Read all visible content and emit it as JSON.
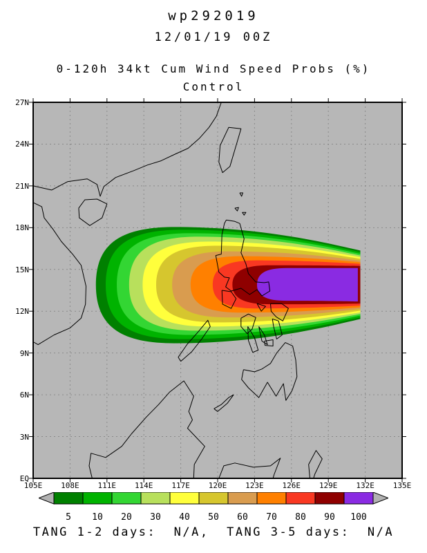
{
  "header": {
    "storm_id": "wp292019",
    "datetime": "12/01/19 00Z",
    "product": "0-120h 34kt Cum Wind Speed Probs (%)",
    "member": "Control"
  },
  "footer": {
    "text": "TANG 1-2 days:  N/A,  TANG 3-5 days:  N/A"
  },
  "chart_data": {
    "type": "filled_contour_map",
    "title": "wp292019 12/01/19 00Z 0-120h 34kt Cum Wind Speed Probs (%) Control",
    "units": "%",
    "map_bg": "#b7b7b7",
    "grid_color": "#8a8a8a",
    "coast_color": "#000000",
    "x_axis": {
      "lon_min": 105,
      "lon_max": 135,
      "step": 3,
      "ticks": [
        "105E",
        "108E",
        "111E",
        "114E",
        "117E",
        "120E",
        "123E",
        "126E",
        "129E",
        "132E",
        "135E"
      ]
    },
    "y_axis": {
      "lat_min": 0,
      "lat_max": 27,
      "step": 3,
      "ticks": [
        "27N",
        "24N",
        "21N",
        "18N",
        "15N",
        "12N",
        "9N",
        "6N",
        "3N",
        "EQ"
      ]
    },
    "colorbar": {
      "levels": [
        "5",
        "10",
        "20",
        "30",
        "40",
        "50",
        "60",
        "70",
        "80",
        "90",
        "100"
      ],
      "colors": [
        "#008000",
        "#00b300",
        "#33d633",
        "#b8e05c",
        "#ffff3c",
        "#d6c62e",
        "#d99c4f",
        "#ff8000",
        "#f93822",
        "#8f0000",
        "#8a2be2"
      ],
      "arrow_color": "#b2b2b2"
    },
    "contours": [
      {
        "level": 5,
        "color": "#008000",
        "left_lon": 110.1,
        "top_lat": 18.05,
        "bot_lat": 9.7,
        "right_lon": 131.6,
        "right_half": 2.46,
        "mid_lat": 13.9
      },
      {
        "level": 10,
        "color": "#00b300",
        "left_lon": 110.9,
        "top_lat": 17.85,
        "bot_lat": 10.0,
        "right_lon": 131.6,
        "right_half": 2.34,
        "mid_lat": 13.9
      },
      {
        "level": 20,
        "color": "#33d633",
        "left_lon": 111.8,
        "top_lat": 17.6,
        "bot_lat": 10.3,
        "right_lon": 131.6,
        "right_half": 2.22,
        "mid_lat": 13.9
      },
      {
        "level": 30,
        "color": "#b8e05c",
        "left_lon": 112.8,
        "top_lat": 17.35,
        "bot_lat": 10.6,
        "right_lon": 131.6,
        "right_half": 2.1,
        "mid_lat": 13.9
      },
      {
        "level": 40,
        "color": "#ffff3c",
        "left_lon": 113.9,
        "top_lat": 17.0,
        "bot_lat": 10.9,
        "right_lon": 131.6,
        "right_half": 1.98,
        "mid_lat": 13.9
      },
      {
        "level": 50,
        "color": "#d6c62e",
        "left_lon": 115.0,
        "top_lat": 16.7,
        "bot_lat": 11.2,
        "right_lon": 131.6,
        "right_half": 1.86,
        "mid_lat": 13.9
      },
      {
        "level": 60,
        "color": "#d99c4f",
        "left_lon": 116.3,
        "top_lat": 16.3,
        "bot_lat": 11.55,
        "right_lon": 131.6,
        "right_half": 1.74,
        "mid_lat": 13.9
      },
      {
        "level": 70,
        "color": "#ff8000",
        "left_lon": 117.8,
        "top_lat": 15.95,
        "bot_lat": 11.9,
        "right_lon": 131.6,
        "right_half": 1.62,
        "mid_lat": 13.9
      },
      {
        "level": 80,
        "color": "#f93822",
        "left_lon": 119.6,
        "top_lat": 15.65,
        "bot_lat": 12.2,
        "right_lon": 131.6,
        "right_half": 1.5,
        "mid_lat": 13.9
      },
      {
        "level": 90,
        "color": "#8f0000",
        "left_lon": 121.2,
        "top_lat": 15.3,
        "bot_lat": 12.5,
        "right_lon": 131.6,
        "right_half": 1.35,
        "mid_lat": 13.9
      },
      {
        "level": 100,
        "color": "#8a2be2",
        "left_lon": 123.2,
        "top_lat": 15.1,
        "bot_lat": 12.75,
        "right_lon": 131.4,
        "right_half": 1.2,
        "mid_lat": 13.9
      }
    ],
    "coastlines": [
      [
        [
          105,
          19.8
        ],
        [
          105.7,
          19.5
        ],
        [
          105.9,
          18.7
        ],
        [
          106.6,
          17.9
        ],
        [
          107.3,
          17.0
        ],
        [
          108.2,
          16.1
        ],
        [
          108.9,
          15.3
        ],
        [
          109.3,
          13.8
        ],
        [
          109.25,
          12.5
        ],
        [
          108.9,
          11.5
        ],
        [
          108.0,
          10.8
        ],
        [
          106.7,
          10.3
        ],
        [
          105.4,
          9.6
        ],
        [
          105,
          9.8
        ]
      ],
      [
        [
          105,
          21.0
        ],
        [
          106.5,
          20.7
        ],
        [
          107.8,
          21.3
        ],
        [
          109.4,
          21.5
        ],
        [
          110.2,
          21.1
        ],
        [
          110.45,
          20.25
        ],
        [
          110.75,
          20.95
        ],
        [
          111.7,
          21.6
        ],
        [
          113.2,
          22.1
        ],
        [
          114.3,
          22.5
        ],
        [
          115.4,
          22.8
        ],
        [
          116.6,
          23.3
        ],
        [
          117.6,
          23.7
        ],
        [
          118.5,
          24.4
        ],
        [
          119.3,
          25.2
        ],
        [
          119.9,
          26.0
        ],
        [
          120.3,
          27.0
        ]
      ],
      [
        [
          108.7,
          19.4
        ],
        [
          109.2,
          20.0
        ],
        [
          110.2,
          20.05
        ],
        [
          111.0,
          19.7
        ],
        [
          110.6,
          18.7
        ],
        [
          109.6,
          18.15
        ],
        [
          108.75,
          18.7
        ],
        [
          108.7,
          19.4
        ]
      ],
      [
        [
          120.1,
          22.7
        ],
        [
          120.2,
          23.9
        ],
        [
          120.9,
          25.2
        ],
        [
          121.9,
          25.1
        ],
        [
          121.7,
          24.5
        ],
        [
          121.0,
          22.4
        ],
        [
          120.4,
          21.95
        ],
        [
          120.1,
          22.7
        ]
      ],
      [
        [
          120.7,
          18.55
        ],
        [
          121.4,
          18.45
        ],
        [
          121.8,
          18.3
        ],
        [
          122.15,
          17.2
        ],
        [
          121.9,
          16.2
        ],
        [
          122.3,
          15.4
        ],
        [
          122.5,
          14.7
        ],
        [
          123.1,
          14.1
        ],
        [
          123.8,
          14.05
        ],
        [
          124.15,
          14.1
        ],
        [
          124.25,
          13.45
        ],
        [
          123.6,
          13.1
        ],
        [
          123.2,
          13.55
        ],
        [
          122.6,
          13.2
        ],
        [
          121.9,
          13.65
        ],
        [
          121.1,
          13.45
        ],
        [
          120.65,
          13.75
        ],
        [
          120.95,
          14.4
        ],
        [
          120.55,
          14.45
        ],
        [
          120.1,
          14.8
        ],
        [
          119.85,
          16.0
        ],
        [
          120.3,
          16.1
        ],
        [
          120.35,
          17.5
        ],
        [
          120.55,
          18.3
        ],
        [
          120.7,
          18.55
        ]
      ],
      [
        [
          120.35,
          13.5
        ],
        [
          121.1,
          13.4
        ],
        [
          121.5,
          12.9
        ],
        [
          121.1,
          12.2
        ],
        [
          120.4,
          12.5
        ],
        [
          120.35,
          13.5
        ]
      ],
      [
        [
          117.0,
          8.4
        ],
        [
          117.9,
          9.1
        ],
        [
          118.7,
          10.0
        ],
        [
          119.4,
          10.9
        ],
        [
          119.2,
          11.35
        ],
        [
          118.4,
          10.5
        ],
        [
          117.5,
          9.6
        ],
        [
          116.8,
          8.7
        ],
        [
          117.0,
          8.4
        ]
      ],
      [
        [
          121.9,
          11.5
        ],
        [
          122.5,
          11.8
        ],
        [
          123.1,
          11.55
        ],
        [
          122.8,
          10.7
        ],
        [
          122.4,
          10.4
        ],
        [
          121.9,
          10.9
        ],
        [
          121.9,
          11.5
        ]
      ],
      [
        [
          122.45,
          10.9
        ],
        [
          123.0,
          10.1
        ],
        [
          123.3,
          9.2
        ],
        [
          122.85,
          9.05
        ],
        [
          122.5,
          9.9
        ],
        [
          122.45,
          10.9
        ]
      ],
      [
        [
          123.35,
          10.9
        ],
        [
          123.8,
          10.3
        ],
        [
          124.05,
          9.6
        ],
        [
          123.6,
          9.85
        ],
        [
          123.35,
          10.9
        ]
      ],
      [
        [
          123.8,
          9.85
        ],
        [
          124.5,
          9.95
        ],
        [
          124.5,
          9.5
        ],
        [
          123.85,
          9.55
        ],
        [
          123.8,
          9.85
        ]
      ],
      [
        [
          124.3,
          12.55
        ],
        [
          125.2,
          12.55
        ],
        [
          125.75,
          12.2
        ],
        [
          125.3,
          11.3
        ],
        [
          124.75,
          11.6
        ],
        [
          124.35,
          12.0
        ],
        [
          124.3,
          12.55
        ]
      ],
      [
        [
          124.45,
          11.45
        ],
        [
          124.95,
          11.3
        ],
        [
          125.25,
          10.3
        ],
        [
          124.8,
          10.0
        ],
        [
          124.55,
          10.9
        ],
        [
          124.45,
          11.45
        ]
      ],
      [
        [
          123.2,
          12.55
        ],
        [
          123.9,
          12.35
        ],
        [
          123.55,
          12.0
        ],
        [
          123.2,
          12.55
        ]
      ],
      [
        [
          122.1,
          7.8
        ],
        [
          123.0,
          7.65
        ],
        [
          123.6,
          7.85
        ],
        [
          124.3,
          8.25
        ],
        [
          124.8,
          9.0
        ],
        [
          125.5,
          9.75
        ],
        [
          126.1,
          9.5
        ],
        [
          126.35,
          8.5
        ],
        [
          126.45,
          7.3
        ],
        [
          126.05,
          6.3
        ],
        [
          125.55,
          5.6
        ],
        [
          125.35,
          6.8
        ],
        [
          124.75,
          5.9
        ],
        [
          124.05,
          6.9
        ],
        [
          123.35,
          5.8
        ],
        [
          122.5,
          6.5
        ],
        [
          121.95,
          7.1
        ],
        [
          122.1,
          7.8
        ]
      ],
      [
        [
          109.8,
          0
        ],
        [
          109.55,
          0.9
        ],
        [
          109.7,
          1.8
        ],
        [
          110.9,
          1.5
        ],
        [
          112.2,
          2.3
        ],
        [
          113.0,
          3.2
        ],
        [
          114.2,
          4.4
        ],
        [
          115.2,
          5.3
        ],
        [
          116.1,
          6.2
        ],
        [
          117.25,
          7.0
        ],
        [
          118.05,
          5.9
        ],
        [
          117.65,
          4.8
        ],
        [
          117.95,
          4.2
        ],
        [
          117.55,
          3.6
        ],
        [
          118.95,
          2.3
        ],
        [
          118.1,
          1.0
        ],
        [
          118.05,
          0
        ]
      ],
      [
        [
          120.1,
          0
        ],
        [
          120.5,
          0.9
        ],
        [
          121.4,
          1.1
        ],
        [
          122.9,
          0.8
        ],
        [
          124.3,
          0.9
        ],
        [
          125.1,
          1.45
        ],
        [
          124.6,
          0.3
        ],
        [
          124.5,
          0
        ]
      ],
      [
        [
          127.5,
          0
        ],
        [
          127.4,
          1.0
        ],
        [
          128.0,
          2.0
        ],
        [
          128.5,
          1.4
        ],
        [
          127.9,
          0.3
        ],
        [
          127.8,
          0
        ]
      ],
      [
        [
          121.8,
          20.5
        ],
        [
          122.05,
          20.5
        ],
        [
          121.95,
          20.25
        ],
        [
          121.8,
          20.5
        ]
      ],
      [
        [
          121.4,
          19.4
        ],
        [
          121.7,
          19.45
        ],
        [
          121.6,
          19.2
        ],
        [
          121.4,
          19.4
        ]
      ],
      [
        [
          122.0,
          19.1
        ],
        [
          122.3,
          19.1
        ],
        [
          122.15,
          18.9
        ],
        [
          122.0,
          19.1
        ]
      ],
      [
        [
          119.7,
          5.0
        ],
        [
          120.3,
          5.3
        ],
        [
          120.9,
          5.8
        ],
        [
          121.3,
          6.0
        ],
        [
          120.8,
          5.4
        ],
        [
          120.0,
          4.8
        ],
        [
          119.7,
          5.0
        ]
      ]
    ]
  }
}
